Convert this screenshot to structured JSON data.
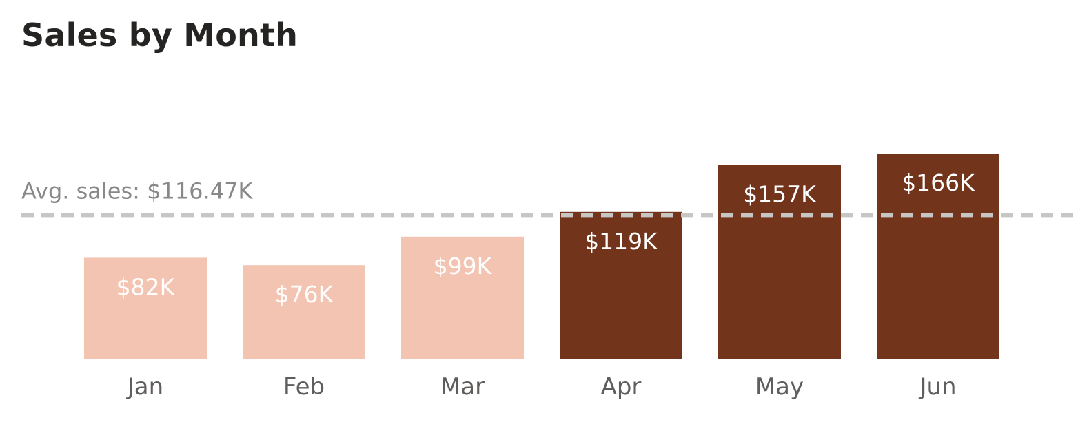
{
  "colors": {
    "below_avg": "#F4C4B2",
    "above_avg": "#73341C",
    "avg_line": "#C8C6C4",
    "title": "#252423",
    "axis_text": "#605E5C"
  },
  "chart_data": {
    "type": "bar",
    "title": "Sales by Month",
    "categories": [
      "Jan",
      "Feb",
      "Mar",
      "Apr",
      "May",
      "Jun"
    ],
    "values": [
      82,
      76,
      99,
      119,
      157,
      166
    ],
    "value_labels": [
      "$82K",
      "$76K",
      "$99K",
      "$119K",
      "$157K",
      "$166K"
    ],
    "unit": "$K",
    "reference_line": {
      "label": "Avg. sales: $116.47K",
      "value": 116.47
    },
    "ylim": [
      0,
      190
    ],
    "grid": false,
    "xlabel": "",
    "ylabel": ""
  }
}
